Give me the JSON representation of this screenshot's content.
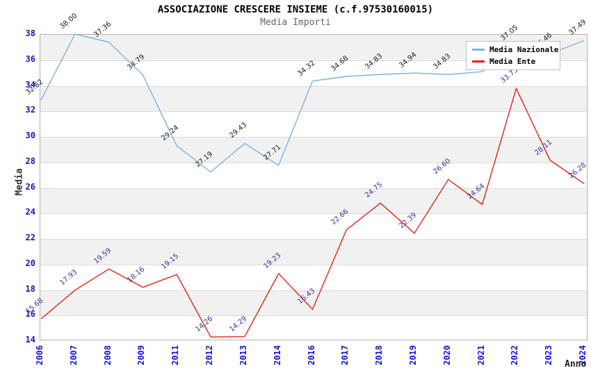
{
  "chart_data": {
    "type": "line",
    "title": "ASSOCIAZIONE CRESCERE INSIEME (c.f.97530160015)",
    "subtitle": "Media Importi",
    "xlabel": "Anno",
    "ylabel": "Media",
    "ylim": [
      14,
      38
    ],
    "yticks": [
      14,
      16,
      18,
      20,
      22,
      24,
      26,
      28,
      30,
      32,
      34,
      36,
      38
    ],
    "grid": "alternating horizontal gray/white bands every 2 units",
    "legend_position": "top-right",
    "categories": [
      "2006",
      "2007",
      "2008",
      "2009",
      "2011",
      "2012",
      "2013",
      "2014",
      "2016",
      "2017",
      "2018",
      "2019",
      "2020",
      "2021",
      "2022",
      "2023",
      "2024"
    ],
    "series": [
      {
        "name": "Media Nazionale",
        "color": "#7ab2e2",
        "label_color": "#1a1a1a",
        "values": [
          32.82,
          38.0,
          37.36,
          34.79,
          29.24,
          27.19,
          29.43,
          27.71,
          34.32,
          34.68,
          34.83,
          34.94,
          34.83,
          35.05,
          37.05,
          36.46,
          37.49
        ],
        "labels": [
          "32.82",
          "38.00",
          "37.36",
          "34.79",
          "29.24",
          "27.19",
          "29.43",
          "27.71",
          "34.32",
          "34.68",
          "34.83",
          "34.94",
          "34.83",
          null,
          "37.05",
          "36.46",
          "37.49"
        ]
      },
      {
        "name": "Media Ente",
        "color": "#e62119",
        "label_color": "#333399",
        "values": [
          15.68,
          17.93,
          19.59,
          18.16,
          19.15,
          14.26,
          14.29,
          19.23,
          16.43,
          22.66,
          24.75,
          22.39,
          26.6,
          24.64,
          33.73,
          28.11,
          26.28
        ],
        "labels": [
          "15.68",
          "17.93",
          "19.59",
          "18.16",
          "19.15",
          "14.26",
          "14.29",
          "19.23",
          "16.43",
          "22.66",
          "24.75",
          "22.39",
          "26.60",
          "24.64",
          "33.73",
          "28.11",
          "26.28"
        ]
      }
    ],
    "colors": {
      "tick_label": "#1414cc",
      "band_gray": "#f1f1f1",
      "gridline": "#dcdcdc",
      "plot_border": "#b0b0b0",
      "title": "#000000",
      "subtitle": "#666666"
    }
  }
}
